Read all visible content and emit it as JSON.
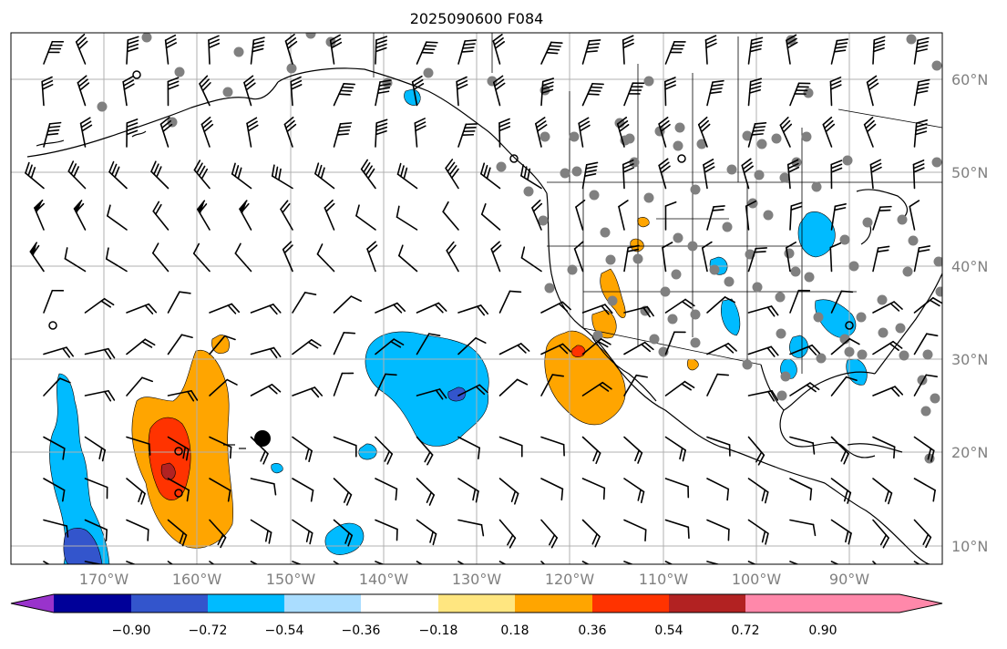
{
  "title": "2025090600 F084",
  "lat_labels": [
    "60°N",
    "50°N",
    "40°N",
    "30°N",
    "20°N",
    "10°N"
  ],
  "lon_labels": [
    "170°W",
    "160°W",
    "150°W",
    "140°W",
    "130°W",
    "120°W",
    "110°W",
    "100°W",
    "90°W"
  ],
  "colorbar": {
    "ticks": [
      "−0.90",
      "−0.72",
      "−0.54",
      "−0.36",
      "−0.18",
      "0.18",
      "0.36",
      "0.54",
      "0.72",
      "0.90"
    ],
    "colors": [
      "#9933cc",
      "#000099",
      "#3355cc",
      "#00bbff",
      "#aaddff",
      "#ffffff",
      "#ffe680",
      "#ffa500",
      "#ff3300",
      "#b22222",
      "#ff88aa"
    ]
  },
  "fill_colors": {
    "light_blue": "#aaddff",
    "blue": "#00bbff",
    "mid_blue": "#3355cc",
    "yellow": "#ffe680",
    "orange": "#ffa500",
    "red_orange": "#ff3300",
    "dark_red": "#b22222"
  },
  "station_color": "#808080"
}
